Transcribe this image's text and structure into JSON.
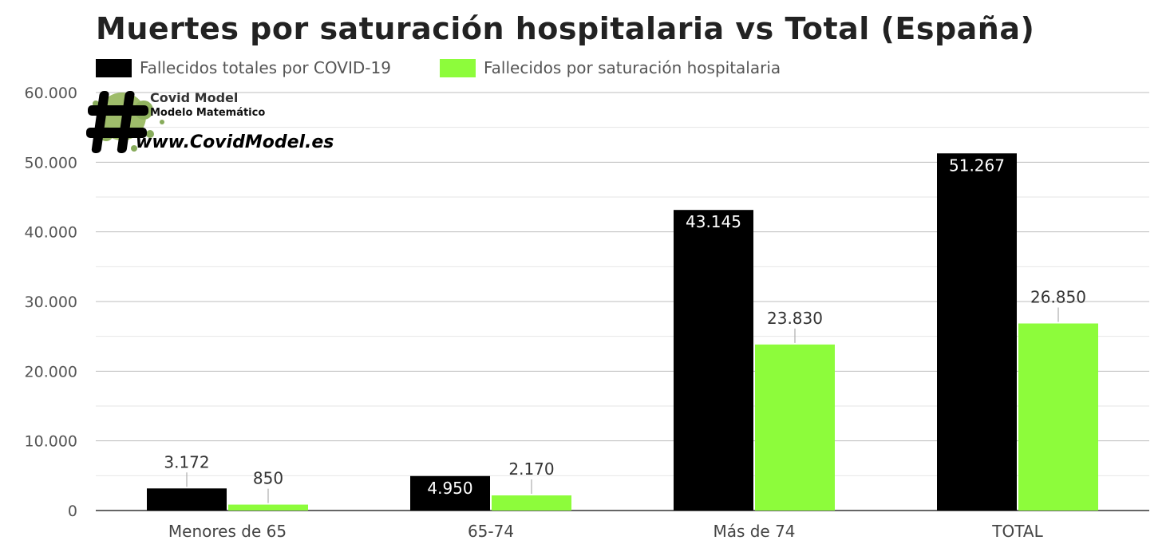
{
  "chart_data": {
    "type": "bar",
    "title": "Muertes por saturación hospitalaria vs Total (España)",
    "categories": [
      "Menores de 65",
      "65-74",
      "Más de 74",
      "TOTAL"
    ],
    "series": [
      {
        "name": "Fallecidos totales por COVID-19",
        "color": "#000000",
        "values": [
          3172,
          4950,
          43145,
          51267
        ],
        "labels": [
          "3.172",
          "4.950",
          "43.145",
          "51.267"
        ]
      },
      {
        "name": "Fallecidos por saturación hospitalaria",
        "color": "#8dfc3b",
        "values": [
          850,
          2170,
          23830,
          26850
        ],
        "labels": [
          "850",
          "2.170",
          "23.830",
          "26.850"
        ]
      }
    ],
    "ylim": [
      0,
      60000
    ],
    "yticks": [
      0,
      10000,
      20000,
      30000,
      40000,
      50000,
      60000
    ],
    "ytick_labels": [
      "0",
      "10.000",
      "20.000",
      "30.000",
      "40.000",
      "50.000",
      "60.000"
    ],
    "xlabel": "",
    "ylabel": "",
    "grid": true,
    "legend_position": "top-left"
  },
  "watermark": {
    "brand": "Covid Model",
    "subtitle": "Modelo Matemático",
    "url": "www.CovidModel.es"
  }
}
